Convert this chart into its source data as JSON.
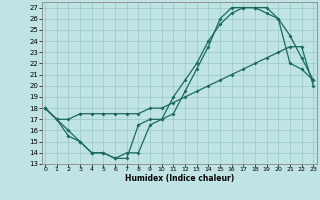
{
  "xlabel": "Humidex (Indice chaleur)",
  "bg_color": "#c0e4e4",
  "line_color": "#1a6b5a",
  "xlim": [
    -0.3,
    23.3
  ],
  "ylim": [
    13,
    27.5
  ],
  "yticks": [
    13,
    14,
    15,
    16,
    17,
    18,
    19,
    20,
    21,
    22,
    23,
    24,
    25,
    26,
    27
  ],
  "xticks": [
    0,
    1,
    2,
    3,
    4,
    5,
    6,
    7,
    8,
    9,
    10,
    11,
    12,
    13,
    14,
    15,
    16,
    17,
    18,
    19,
    20,
    21,
    22,
    23
  ],
  "curve1_x": [
    0,
    1,
    2,
    3,
    4,
    5,
    6,
    7,
    8,
    9,
    10,
    11,
    12,
    13,
    14,
    15,
    16,
    17,
    18,
    19,
    20,
    21,
    22,
    23
  ],
  "curve1_y": [
    18,
    17,
    16,
    15,
    14,
    14,
    13.5,
    13.5,
    16.5,
    17,
    17,
    19,
    20.5,
    22,
    24,
    25.5,
    26.5,
    27,
    27,
    27,
    26,
    22,
    21.5,
    20.5
  ],
  "curve2_x": [
    0,
    1,
    2,
    3,
    4,
    5,
    6,
    7,
    8,
    9,
    10,
    11,
    12,
    13,
    14,
    15,
    16,
    17,
    18,
    19,
    20,
    21,
    22,
    23
  ],
  "curve2_y": [
    18,
    17,
    15.5,
    15,
    14,
    14,
    13.5,
    14,
    14,
    16.5,
    17,
    17.5,
    19.5,
    21.5,
    23.5,
    26,
    27,
    27,
    27,
    26.5,
    26,
    24.5,
    22.5,
    20.5
  ],
  "curve3_x": [
    0,
    1,
    2,
    3,
    4,
    5,
    6,
    7,
    8,
    9,
    10,
    11,
    12,
    13,
    14,
    15,
    16,
    17,
    18,
    19,
    20,
    21,
    22,
    23
  ],
  "curve3_y": [
    18,
    17,
    17,
    17.5,
    17.5,
    17.5,
    17.5,
    17.5,
    17.5,
    18,
    18,
    18.5,
    19,
    19.5,
    20,
    20.5,
    21,
    21.5,
    22,
    22.5,
    23,
    23.5,
    23.5,
    20
  ]
}
